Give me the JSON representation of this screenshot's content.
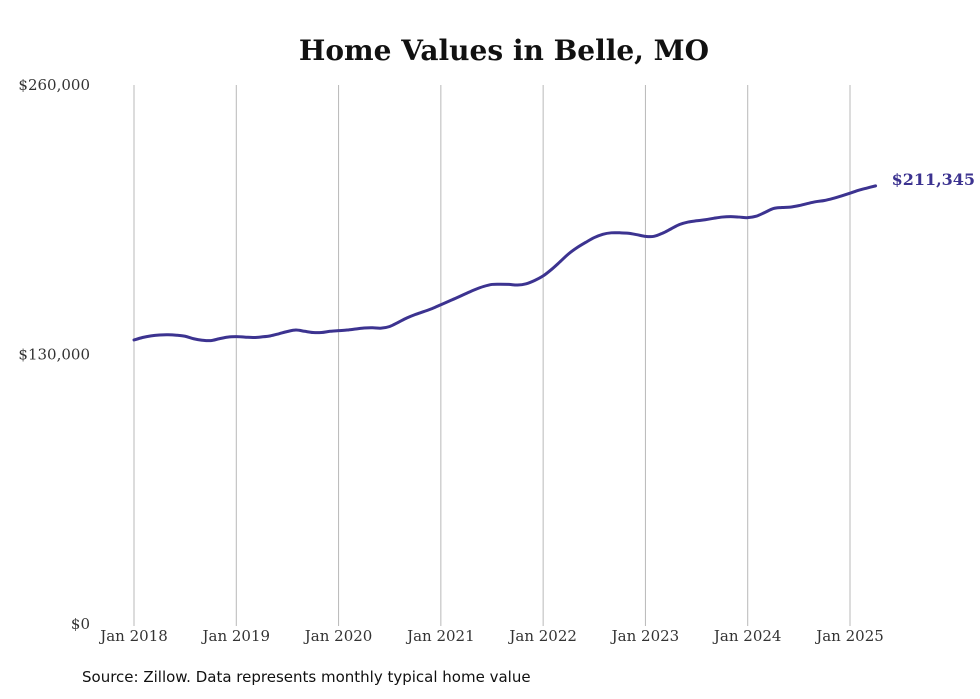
{
  "chart_data": {
    "type": "line",
    "title": "Home Values in Belle, MO",
    "xlabel": "",
    "ylabel": "",
    "ylim": [
      0,
      260000
    ],
    "y_ticks": [
      {
        "value": 0,
        "label": "$0"
      },
      {
        "value": 130000,
        "label": "$130,000"
      },
      {
        "value": 260000,
        "label": "$260,000"
      }
    ],
    "x_ticks": [
      "Jan 2018",
      "Jan 2019",
      "Jan 2020",
      "Jan 2021",
      "Jan 2022",
      "Jan 2023",
      "Jan 2024",
      "Jan 2025"
    ],
    "grid": "vertical",
    "line_color": "#3c3390",
    "end_label": "$211,345",
    "series": [
      {
        "x": [
          "2018-01",
          "2018-02",
          "2018-03",
          "2018-04",
          "2018-05",
          "2018-06",
          "2018-07",
          "2018-08",
          "2018-09",
          "2018-10",
          "2018-11",
          "2018-12",
          "2019-01",
          "2019-02",
          "2019-03",
          "2019-04",
          "2019-05",
          "2019-06",
          "2019-07",
          "2019-08",
          "2019-09",
          "2019-10",
          "2019-11",
          "2019-12",
          "2020-01",
          "2020-02",
          "2020-03",
          "2020-04",
          "2020-05",
          "2020-06",
          "2020-07",
          "2020-08",
          "2020-09",
          "2020-10",
          "2020-11",
          "2020-12",
          "2021-01",
          "2021-02",
          "2021-03",
          "2021-04",
          "2021-05",
          "2021-06",
          "2021-07",
          "2021-08",
          "2021-09",
          "2021-10",
          "2021-11",
          "2021-12",
          "2022-01",
          "2022-02",
          "2022-03",
          "2022-04",
          "2022-05",
          "2022-06",
          "2022-07",
          "2022-08",
          "2022-09",
          "2022-10",
          "2022-11",
          "2022-12",
          "2023-01",
          "2023-02",
          "2023-03",
          "2023-04",
          "2023-05",
          "2023-06",
          "2023-07",
          "2023-08",
          "2023-09",
          "2023-10",
          "2023-11",
          "2023-12",
          "2024-01",
          "2024-02",
          "2024-03",
          "2024-04",
          "2024-05",
          "2024-06",
          "2024-07",
          "2024-08",
          "2024-09",
          "2024-10",
          "2024-11",
          "2024-12",
          "2025-01",
          "2025-02",
          "2025-03",
          "2025-04"
        ],
        "values": [
          137000,
          138200,
          139000,
          139400,
          139500,
          139300,
          138800,
          137600,
          136900,
          136700,
          137600,
          138400,
          138600,
          138400,
          138200,
          138500,
          139000,
          140000,
          141100,
          141800,
          141200,
          140600,
          140600,
          141200,
          141500,
          141800,
          142300,
          142800,
          142900,
          142700,
          143500,
          145500,
          147600,
          149300,
          150700,
          152200,
          154000,
          155800,
          157600,
          159500,
          161300,
          162800,
          163800,
          163900,
          163800,
          163500,
          164100,
          165700,
          167900,
          171100,
          174800,
          178600,
          181600,
          184100,
          186400,
          188000,
          188700,
          188700,
          188500,
          187800,
          187000,
          187000,
          188500,
          190600,
          192700,
          193900,
          194500,
          195000,
          195700,
          196300,
          196500,
          196300,
          196000,
          196700,
          198500,
          200400,
          200900,
          201100,
          201800,
          202800,
          203700,
          204300,
          205300,
          206500,
          207800,
          209200,
          210300,
          211345
        ]
      }
    ]
  },
  "footer": {
    "source": "Source: Zillow. Data represents monthly typical home value"
  }
}
